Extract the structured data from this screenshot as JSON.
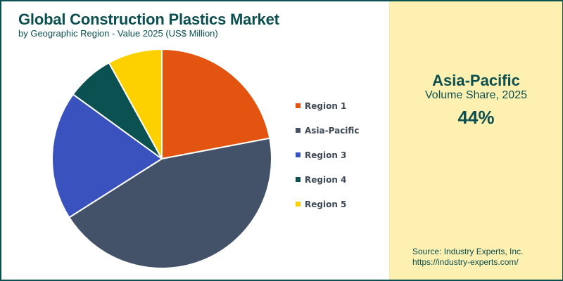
{
  "header": {
    "title": "Global Construction Plastics Market",
    "subtitle": "by Geographic Region - Value 2025 (US$ Million)"
  },
  "highlight": {
    "region": "Asia-Pacific",
    "label": "Volume Share, 2025",
    "value": "44%"
  },
  "source": {
    "line1": "Source: Industry Experts, Inc.",
    "line2": "https://industry-experts.com/"
  },
  "colors": {
    "brand": "#0b4f50",
    "panel_bg": "#fdf0b0"
  },
  "chart_data": {
    "type": "pie",
    "title": "Global Construction Plastics Market",
    "subtitle": "by Geographic Region - Value 2025 (US$ Million)",
    "categories": [
      "Region 1",
      "Asia-Pacific",
      "Region 3",
      "Region 4",
      "Region 5"
    ],
    "values": [
      22,
      44,
      19,
      7,
      8
    ],
    "colors": [
      "#e2540f",
      "#435268",
      "#3a52bd",
      "#0b5152",
      "#fdd100"
    ],
    "start_angle": "12 o'clock, clockwise",
    "legend_position": "right",
    "annotation": "Asia-Pacific Volume Share, 2025: 44%"
  },
  "legend": {
    "items": [
      {
        "label": "Region 1",
        "color": "#e2540f"
      },
      {
        "label": "Asia-Pacific",
        "color": "#435268"
      },
      {
        "label": "Region 3",
        "color": "#3a52bd"
      },
      {
        "label": "Region 4",
        "color": "#0b5152"
      },
      {
        "label": "Region 5",
        "color": "#fdd100"
      }
    ]
  }
}
